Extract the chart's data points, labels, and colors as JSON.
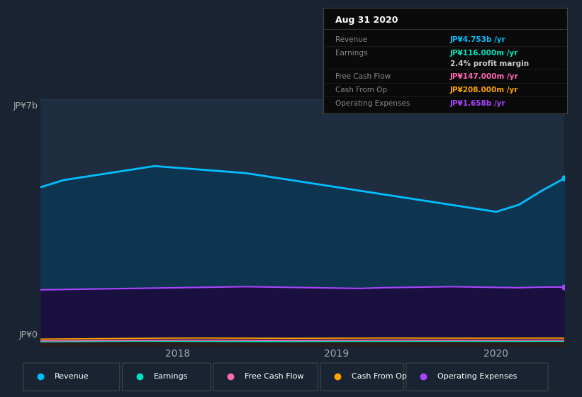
{
  "bg_color": "#1a2332",
  "plot_bg_color": "#1e2d40",
  "title_text": "Aug 31 2020",
  "ylim": [
    0,
    7000000000
  ],
  "legend_items": [
    {
      "label": "Revenue",
      "color": "#00bfff"
    },
    {
      "label": "Earnings",
      "color": "#00e5c0"
    },
    {
      "label": "Free Cash Flow",
      "color": "#ff69b4"
    },
    {
      "label": "Cash From Op",
      "color": "#ffa500"
    },
    {
      "label": "Operating Expenses",
      "color": "#aa44ff"
    }
  ],
  "revenue": [
    4500,
    4700,
    4800,
    4900,
    5000,
    5100,
    5050,
    5000,
    4950,
    4900,
    4800,
    4700,
    4600,
    4500,
    4400,
    4300,
    4200,
    4100,
    4000,
    3900,
    3800,
    4000,
    4400,
    4753
  ],
  "operating_expenses": [
    1580,
    1590,
    1600,
    1610,
    1620,
    1630,
    1640,
    1650,
    1660,
    1670,
    1660,
    1650,
    1640,
    1630,
    1620,
    1640,
    1650,
    1660,
    1670,
    1660,
    1650,
    1640,
    1658,
    1658
  ],
  "earnings": [
    100,
    105,
    110,
    115,
    120,
    118,
    116,
    114,
    112,
    110,
    108,
    110,
    112,
    114,
    116,
    115,
    116,
    117,
    118,
    116,
    115,
    114,
    116,
    116
  ],
  "free_cash_flow": [
    130,
    133,
    136,
    139,
    142,
    145,
    147,
    148,
    146,
    144,
    142,
    140,
    142,
    144,
    146,
    148,
    147,
    146,
    145,
    144,
    146,
    147,
    148,
    147
  ],
  "cash_from_op": [
    180,
    185,
    190,
    195,
    200,
    205,
    208,
    210,
    208,
    206,
    204,
    202,
    204,
    206,
    208,
    210,
    209,
    208,
    207,
    206,
    207,
    208,
    208,
    208
  ],
  "n_points": 24,
  "revenue_color": "#00bfff",
  "op_exp_color": "#aa44ff",
  "earnings_color": "#00e5c0",
  "fcf_color": "#ff69b4",
  "cfop_color": "#ffa500",
  "tooltip_rows": [
    {
      "label": "Revenue",
      "value": "JP¥4.753b /yr",
      "color": "#00bfff",
      "has_divider": true
    },
    {
      "label": "Earnings",
      "value": "JP¥116.000m /yr",
      "color": "#00e5c0",
      "has_divider": true
    },
    {
      "label": "",
      "value": "2.4% profit margin",
      "color": "#cccccc",
      "has_divider": false
    },
    {
      "label": "Free Cash Flow",
      "value": "JP¥147.000m /yr",
      "color": "#ff69b4",
      "has_divider": true
    },
    {
      "label": "Cash From Op",
      "value": "JP¥208.000m /yr",
      "color": "#ffa500",
      "has_divider": true
    },
    {
      "label": "Operating Expenses",
      "value": "JP¥1.658b /yr",
      "color": "#aa44ff",
      "has_divider": true
    }
  ]
}
